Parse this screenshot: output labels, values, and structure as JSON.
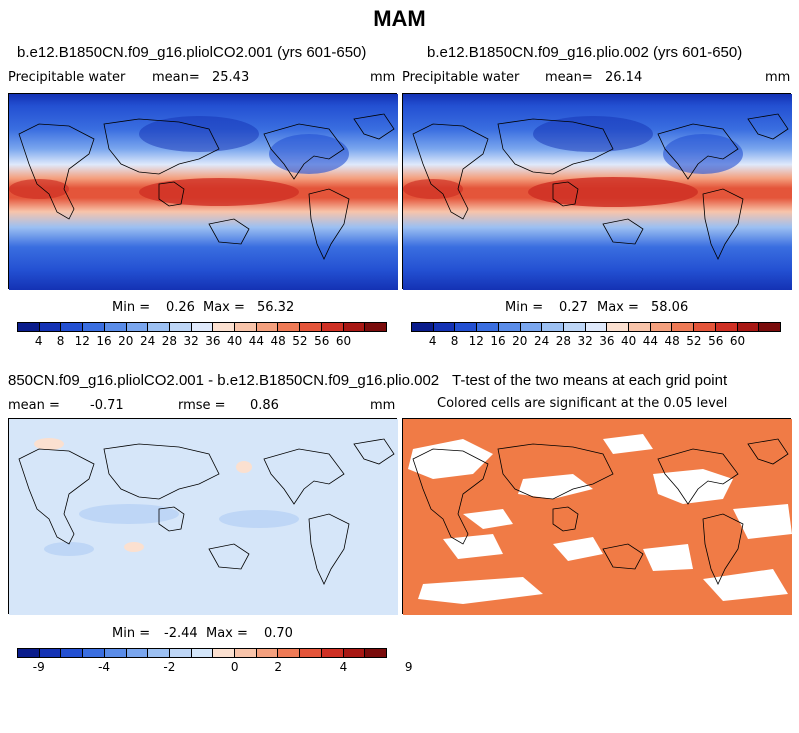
{
  "title": "MAM",
  "panels": [
    {
      "title": "b.e12.B1850CN.f09_g16.pliolCO2.001 (yrs 601-650)",
      "variable": "Precipitable water",
      "mean_label": "mean=",
      "mean_value": "25.43",
      "units": "mm",
      "min_label": "Min =",
      "min_value": "0.26",
      "max_label": "Max =",
      "max_value": "56.32"
    },
    {
      "title": "b.e12.B1850CN.f09_g16.plio.002 (yrs 601-650)",
      "variable": "Precipitable water",
      "mean_label": "mean=",
      "mean_value": "26.14",
      "units": "mm",
      "min_label": "Min =",
      "min_value": "0.27",
      "max_label": "Max =",
      "max_value": "58.06"
    },
    {
      "title": "850CN.f09_g16.pliolCO2.001 - b.e12.B1850CN.f09_g16.plio.002",
      "mean_label": "mean =",
      "mean_value": "-0.71",
      "rmse_label": "rmse =",
      "rmse_value": "0.86",
      "units": "mm",
      "min_label": "Min =",
      "min_value": "-2.44",
      "max_label": "Max =",
      "max_value": "0.70"
    },
    {
      "title": "T-test of the two means at each grid point",
      "subtitle": "Colored cells are significant at the 0.05 level"
    }
  ],
  "colorbar_abs": {
    "colors": [
      "#0a1c8c",
      "#1432b4",
      "#2350d2",
      "#3a6ee0",
      "#5a8ce8",
      "#7aa6ee",
      "#9cc0f2",
      "#bed6f6",
      "#dfe9fb",
      "#fbe0d0",
      "#f8c4aa",
      "#f4a07e",
      "#ee7a56",
      "#e4553a",
      "#cf3024",
      "#a81814",
      "#7a0c0c"
    ],
    "tick_labels": [
      "4",
      "8",
      "12",
      "16",
      "20",
      "24",
      "28",
      "32",
      "36",
      "40",
      "44",
      "48",
      "52",
      "56",
      "60"
    ]
  },
  "colorbar_diff": {
    "colors": [
      "#0a1c8c",
      "#1432b4",
      "#2350d2",
      "#3a6ee0",
      "#5a8ce8",
      "#7aa6ee",
      "#9cc0f2",
      "#bed6f6",
      "#d4e6fa",
      "#fbe0d0",
      "#f8c4aa",
      "#f4a07e",
      "#ee7a56",
      "#e4553a",
      "#cf3024",
      "#a81814",
      "#7a0c0c"
    ],
    "tick_labels": [
      "-9",
      "-4",
      "-2",
      "0",
      "2",
      "4",
      "9"
    ]
  },
  "colors": {
    "diff_background": "#d6e6f9",
    "significant": "#f07b46"
  }
}
